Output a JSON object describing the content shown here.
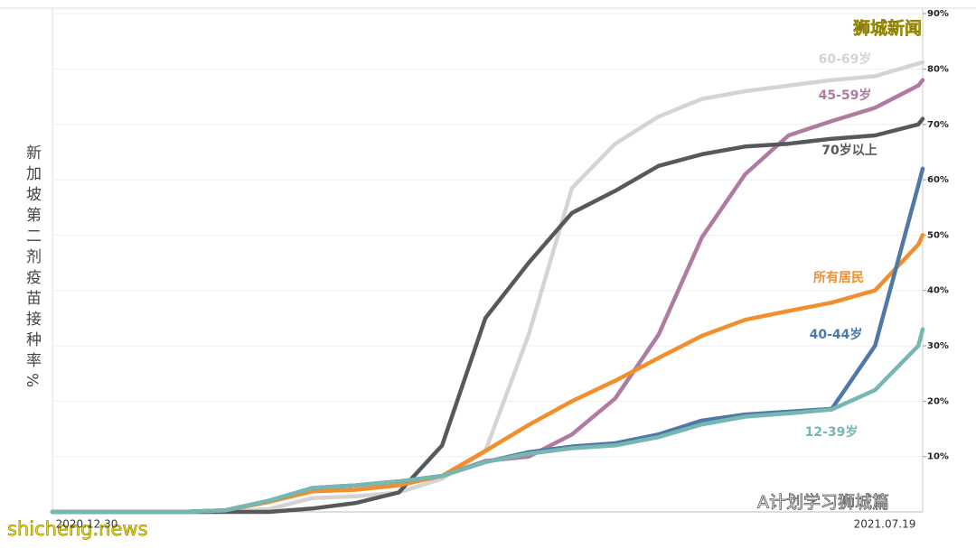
{
  "chart_data": {
    "type": "line",
    "y_label": "新加坡第二剂疫苗接种率%",
    "x": [
      "2020.12.30",
      "2021.01.09",
      "2021.01.19",
      "2021.01.29",
      "2021.02.08",
      "2021.02.18",
      "2021.02.28",
      "2021.03.10",
      "2021.03.20",
      "2021.03.30",
      "2021.04.09",
      "2021.04.19",
      "2021.04.29",
      "2021.05.09",
      "2021.05.19",
      "2021.05.29",
      "2021.06.08",
      "2021.06.18",
      "2021.06.28",
      "2021.07.08",
      "2021.07.18",
      "2021.07.19"
    ],
    "xticks": [
      "2020.12.30",
      "2021.07.19"
    ],
    "ylim": [
      0,
      91
    ],
    "yticks": [
      {
        "value": 10,
        "label": "10%"
      },
      {
        "value": 20,
        "label": "20%"
      },
      {
        "value": 30,
        "label": "30%"
      },
      {
        "value": 40,
        "label": "40%"
      },
      {
        "value": 50,
        "label": "50%"
      },
      {
        "value": 60,
        "label": "60%"
      },
      {
        "value": 70,
        "label": "70%"
      },
      {
        "value": 80,
        "label": "80%"
      },
      {
        "value": 90,
        "label": "90%"
      }
    ],
    "grid": true,
    "series": [
      {
        "name": "60-69岁",
        "color": "#d4d4d4",
        "values": [
          0,
          0,
          0,
          0,
          0,
          0.5,
          2.5,
          2.8,
          3.5,
          6,
          11,
          32,
          58.5,
          66.5,
          71.4,
          74.6,
          76,
          77,
          78,
          78.7,
          81,
          81.2
        ]
      },
      {
        "name": "45-59岁",
        "color": "#b07aa1",
        "values": [
          0,
          0,
          0,
          0,
          0.3,
          2,
          4.3,
          4.8,
          5.5,
          6.5,
          9.2,
          10,
          14,
          20.5,
          32,
          49.6,
          61,
          68,
          70.6,
          73,
          77,
          78
        ]
      },
      {
        "name": "70岁以上",
        "color": "#55595d",
        "values": [
          0,
          0,
          0,
          0,
          0,
          0,
          0.6,
          1.6,
          3.5,
          12,
          35,
          45,
          54,
          58,
          62.5,
          64.6,
          66,
          66.5,
          67.4,
          68,
          70,
          71
        ]
      },
      {
        "name": "所有居民",
        "color": "#f28e2b",
        "values": [
          0,
          0,
          0,
          0,
          0.3,
          1.8,
          3.7,
          4,
          4.8,
          6.5,
          11,
          15.7,
          20,
          23.7,
          27.8,
          31.8,
          34.7,
          36.3,
          37.8,
          40,
          48.3,
          50
        ]
      },
      {
        "name": "40-44岁",
        "color": "#4e79a7",
        "values": [
          0,
          0,
          0,
          0,
          0.3,
          2,
          4.3,
          4.8,
          5.5,
          6.5,
          9,
          10.8,
          11.8,
          12.4,
          14,
          16.5,
          17.6,
          18.1,
          18.6,
          30,
          59,
          62
        ]
      },
      {
        "name": "12-39岁",
        "color": "#76b7b2",
        "values": [
          0,
          0,
          0,
          0,
          0.3,
          2,
          4.3,
          4.8,
          5.5,
          6.5,
          9,
          10.5,
          11.5,
          12,
          13.5,
          15.8,
          17.2,
          17.8,
          18.5,
          22,
          30,
          33
        ]
      }
    ],
    "watermarks": [
      "狮城新闻",
      "shicheng.news",
      "A计划学习狮城篇"
    ]
  }
}
